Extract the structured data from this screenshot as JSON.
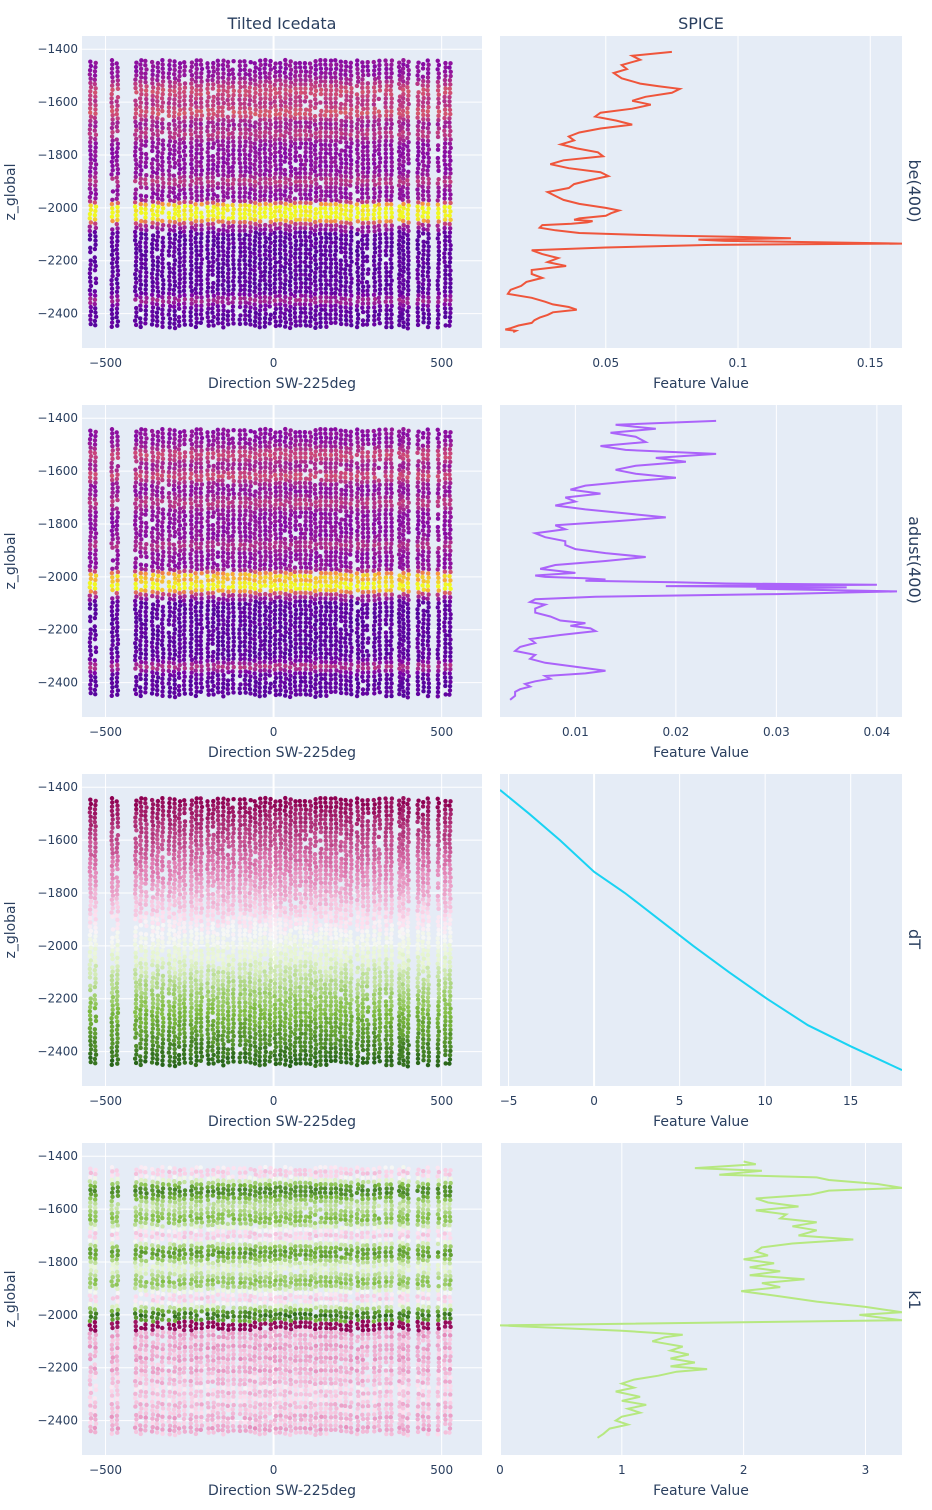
{
  "figure": {
    "column_titles": [
      "Tilted Icedata",
      "SPICE"
    ],
    "row_titles": [
      "be(400)",
      "adust(400)",
      "dT",
      "k1"
    ],
    "background": "#ffffff",
    "plot_background": "#e5ecf6"
  },
  "chart_data": [
    {
      "type": "scatter",
      "panel": "scatter-be400",
      "xlabel": "Direction SW-225deg",
      "ylabel": "z_global",
      "xlim": [
        -570,
        620
      ],
      "ylim": [
        -2530,
        -1350
      ],
      "xticks": [
        -500,
        0,
        500
      ],
      "xtick_labels": [
        "−500",
        "0",
        "500"
      ],
      "yticks": [
        -1400,
        -1600,
        -1800,
        -2000,
        -2200,
        -2400
      ],
      "ytick_labels": [
        "−1400",
        "−1600",
        "−1800",
        "−2000",
        "−2200",
        "−2400"
      ],
      "x_columns": [
        -545,
        -530,
        -480,
        -465,
        -410,
        -395,
        -380,
        -360,
        -345,
        -330,
        -310,
        -295,
        -280,
        -265,
        -245,
        -230,
        -215,
        -195,
        -180,
        -165,
        -150,
        -135,
        -120,
        -100,
        -85,
        -70,
        -55,
        -40,
        -25,
        -10,
        5,
        20,
        35,
        50,
        65,
        80,
        95,
        110,
        125,
        140,
        155,
        170,
        185,
        200,
        215,
        230,
        250,
        265,
        280,
        300,
        315,
        335,
        350,
        375,
        385,
        400,
        430,
        445,
        460,
        490,
        510,
        525
      ],
      "z_range": [
        -2460,
        -1440
      ],
      "colorscale": "plasma",
      "color_profile": "be400"
    },
    {
      "type": "line",
      "panel": "line-be400",
      "xlabel": "Feature Value",
      "ylabel": "",
      "color": "#ef553b",
      "xlim": [
        0.01,
        0.162
      ],
      "ylim": [
        -2530,
        -1350
      ],
      "xticks": [
        0.05,
        0.1,
        0.15
      ],
      "xtick_labels": [
        "0.05",
        "0.1",
        "0.15"
      ],
      "x": [
        0.075,
        0.06,
        0.063,
        0.056,
        0.058,
        0.053,
        0.056,
        0.063,
        0.07,
        0.078,
        0.075,
        0.065,
        0.06,
        0.067,
        0.06,
        0.048,
        0.046,
        0.054,
        0.06,
        0.048,
        0.04,
        0.036,
        0.038,
        0.033,
        0.039,
        0.047,
        0.049,
        0.034,
        0.029,
        0.036,
        0.048,
        0.051,
        0.044,
        0.038,
        0.036,
        0.028,
        0.031,
        0.034,
        0.04,
        0.05,
        0.055,
        0.052,
        0.05,
        0.04,
        0.038,
        0.045,
        0.043,
        0.037,
        0.026,
        0.025,
        0.031,
        0.04,
        0.055,
        0.074,
        0.1,
        0.12,
        0.085,
        0.095,
        0.13,
        0.162,
        0.09,
        0.05,
        0.022,
        0.026,
        0.032,
        0.028,
        0.035,
        0.022,
        0.022,
        0.026,
        0.02,
        0.018,
        0.014,
        0.013,
        0.022,
        0.027,
        0.03,
        0.036,
        0.039,
        0.03,
        0.028,
        0.025,
        0.023,
        0.022,
        0.017,
        0.014,
        0.012,
        0.016,
        0.015
      ],
      "y": [
        -1410,
        -1425,
        -1440,
        -1460,
        -1475,
        -1490,
        -1510,
        -1530,
        -1540,
        -1550,
        -1565,
        -1580,
        -1595,
        -1610,
        -1625,
        -1640,
        -1655,
        -1670,
        -1685,
        -1700,
        -1715,
        -1730,
        -1745,
        -1760,
        -1775,
        -1790,
        -1805,
        -1820,
        -1835,
        -1850,
        -1865,
        -1880,
        -1895,
        -1910,
        -1925,
        -1940,
        -1955,
        -1970,
        -1985,
        -2000,
        -2010,
        -2020,
        -2030,
        -2040,
        -2045,
        -2050,
        -2055,
        -2060,
        -2065,
        -2075,
        -2085,
        -2095,
        -2100,
        -2105,
        -2110,
        -2115,
        -2120,
        -2125,
        -2130,
        -2135,
        -2140,
        -2150,
        -2160,
        -2175,
        -2190,
        -2205,
        -2220,
        -2235,
        -2250,
        -2265,
        -2280,
        -2295,
        -2310,
        -2325,
        -2340,
        -2355,
        -2365,
        -2375,
        -2385,
        -2395,
        -2405,
        -2415,
        -2425,
        -2435,
        -2445,
        -2455,
        -2460,
        -2465,
        -2470
      ]
    },
    {
      "type": "scatter",
      "panel": "scatter-adust400",
      "xlabel": "Direction SW-225deg",
      "ylabel": "z_global",
      "xlim": [
        -570,
        620
      ],
      "ylim": [
        -2530,
        -1350
      ],
      "xticks": [
        -500,
        0,
        500
      ],
      "xtick_labels": [
        "−500",
        "0",
        "500"
      ],
      "yticks": [
        -1400,
        -1600,
        -1800,
        -2000,
        -2200,
        -2400
      ],
      "ytick_labels": [
        "−1400",
        "−1600",
        "−1800",
        "−2000",
        "−2200",
        "−2400"
      ],
      "x_columns": [
        -545,
        -530,
        -480,
        -465,
        -410,
        -395,
        -380,
        -360,
        -345,
        -330,
        -310,
        -295,
        -280,
        -265,
        -245,
        -230,
        -215,
        -195,
        -180,
        -165,
        -150,
        -135,
        -120,
        -100,
        -85,
        -70,
        -55,
        -40,
        -25,
        -10,
        5,
        20,
        35,
        50,
        65,
        80,
        95,
        110,
        125,
        140,
        155,
        170,
        185,
        200,
        215,
        230,
        250,
        265,
        280,
        300,
        315,
        335,
        350,
        375,
        385,
        400,
        430,
        445,
        460,
        490,
        510,
        525
      ],
      "z_range": [
        -2460,
        -1440
      ],
      "colorscale": "plasma",
      "color_profile": "adust400"
    },
    {
      "type": "line",
      "panel": "line-adust400",
      "xlabel": "Feature Value",
      "ylabel": "",
      "color": "#ab63fa",
      "xlim": [
        0.0025,
        0.0425
      ],
      "ylim": [
        -2530,
        -1350
      ],
      "xticks": [
        0.01,
        0.02,
        0.03,
        0.04
      ],
      "xtick_labels": [
        "0.01",
        "0.02",
        "0.03",
        "0.04"
      ],
      "x": [
        0.024,
        0.014,
        0.018,
        0.0135,
        0.016,
        0.017,
        0.0125,
        0.015,
        0.024,
        0.018,
        0.021,
        0.016,
        0.014,
        0.016,
        0.02,
        0.015,
        0.011,
        0.0095,
        0.0125,
        0.009,
        0.01,
        0.008,
        0.011,
        0.015,
        0.019,
        0.014,
        0.008,
        0.009,
        0.006,
        0.007,
        0.009,
        0.009,
        0.01,
        0.013,
        0.017,
        0.013,
        0.008,
        0.0065,
        0.01,
        0.006,
        0.007,
        0.011,
        0.013,
        0.011,
        0.02,
        0.025,
        0.04,
        0.019,
        0.037,
        0.028,
        0.042,
        0.03,
        0.012,
        0.006,
        0.0055,
        0.007,
        0.006,
        0.006,
        0.0075,
        0.0085,
        0.011,
        0.0095,
        0.0115,
        0.012,
        0.0085,
        0.0055,
        0.006,
        0.0045,
        0.004,
        0.006,
        0.0055,
        0.007,
        0.01,
        0.013,
        0.011,
        0.007,
        0.0075,
        0.006,
        0.005,
        0.0055,
        0.0045,
        0.004,
        0.004,
        0.0035
      ],
      "y": [
        -1410,
        -1425,
        -1440,
        -1455,
        -1470,
        -1490,
        -1505,
        -1520,
        -1535,
        -1550,
        -1565,
        -1580,
        -1595,
        -1610,
        -1625,
        -1640,
        -1655,
        -1670,
        -1685,
        -1700,
        -1715,
        -1730,
        -1745,
        -1760,
        -1775,
        -1790,
        -1805,
        -1820,
        -1835,
        -1850,
        -1865,
        -1880,
        -1895,
        -1910,
        -1925,
        -1940,
        -1955,
        -1970,
        -1985,
        -1995,
        -2000,
        -2005,
        -2010,
        -2015,
        -2020,
        -2025,
        -2030,
        -2035,
        -2040,
        -2045,
        -2055,
        -2065,
        -2075,
        -2085,
        -2095,
        -2105,
        -2120,
        -2135,
        -2150,
        -2165,
        -2175,
        -2185,
        -2195,
        -2205,
        -2220,
        -2235,
        -2250,
        -2265,
        -2280,
        -2295,
        -2310,
        -2325,
        -2340,
        -2355,
        -2365,
        -2375,
        -2385,
        -2395,
        -2405,
        -2415,
        -2425,
        -2435,
        -2450,
        -2465
      ]
    },
    {
      "type": "scatter",
      "panel": "scatter-dT",
      "xlabel": "Direction SW-225deg",
      "ylabel": "z_global",
      "xlim": [
        -570,
        620
      ],
      "ylim": [
        -2530,
        -1350
      ],
      "xticks": [
        -500,
        0,
        500
      ],
      "xtick_labels": [
        "−500",
        "0",
        "500"
      ],
      "yticks": [
        -1400,
        -1600,
        -1800,
        -2000,
        -2200,
        -2400
      ],
      "ytick_labels": [
        "−1400",
        "−1600",
        "−1800",
        "−2000",
        "−2200",
        "−2400"
      ],
      "x_columns": [
        -545,
        -530,
        -480,
        -465,
        -410,
        -395,
        -380,
        -360,
        -345,
        -330,
        -310,
        -295,
        -280,
        -265,
        -245,
        -230,
        -215,
        -195,
        -180,
        -165,
        -150,
        -135,
        -120,
        -100,
        -85,
        -70,
        -55,
        -40,
        -25,
        -10,
        5,
        20,
        35,
        50,
        65,
        80,
        95,
        110,
        125,
        140,
        155,
        170,
        185,
        200,
        215,
        230,
        250,
        265,
        280,
        300,
        315,
        335,
        350,
        375,
        385,
        400,
        430,
        445,
        460,
        490,
        510,
        525
      ],
      "z_range": [
        -2460,
        -1440
      ],
      "colorscale": "piyg",
      "color_profile": "dT"
    },
    {
      "type": "line",
      "panel": "line-dT",
      "xlabel": "Feature Value",
      "ylabel": "",
      "color": "#19d3f3",
      "xlim": [
        -5.5,
        18
      ],
      "ylim": [
        -2530,
        -1350
      ],
      "xticks": [
        -5,
        0,
        5,
        10,
        15
      ],
      "xtick_labels": [
        "−5",
        "0",
        "5",
        "10",
        "15"
      ],
      "x": [
        -5.5,
        -3.8,
        -2,
        0,
        1.8,
        3.8,
        5.8,
        7.9,
        10.1,
        12.5,
        15,
        18
      ],
      "y": [
        -1410,
        -1500,
        -1600,
        -1720,
        -1800,
        -1900,
        -2000,
        -2100,
        -2200,
        -2300,
        -2380,
        -2470
      ]
    },
    {
      "type": "scatter",
      "panel": "scatter-k1",
      "xlabel": "Direction SW-225deg",
      "ylabel": "z_global",
      "xlim": [
        -570,
        620
      ],
      "ylim": [
        -2530,
        -1350
      ],
      "xticks": [
        -500,
        0,
        500
      ],
      "xtick_labels": [
        "−500",
        "0",
        "500"
      ],
      "yticks": [
        -1400,
        -1600,
        -1800,
        -2000,
        -2200,
        -2400
      ],
      "ytick_labels": [
        "−1400",
        "−1600",
        "−1800",
        "−2000",
        "−2200",
        "−2400"
      ],
      "x_columns": [
        -545,
        -530,
        -480,
        -465,
        -410,
        -395,
        -380,
        -360,
        -345,
        -330,
        -310,
        -295,
        -280,
        -265,
        -245,
        -230,
        -215,
        -195,
        -180,
        -165,
        -150,
        -135,
        -120,
        -100,
        -85,
        -70,
        -55,
        -40,
        -25,
        -10,
        5,
        20,
        35,
        50,
        65,
        80,
        95,
        110,
        125,
        140,
        155,
        170,
        185,
        200,
        215,
        230,
        250,
        265,
        280,
        300,
        315,
        335,
        350,
        375,
        385,
        400,
        430,
        445,
        460,
        490,
        510,
        525
      ],
      "z_range": [
        -2460,
        -1440
      ],
      "colorscale": "piyg",
      "color_profile": "k1"
    },
    {
      "type": "line",
      "panel": "line-k1",
      "xlabel": "Feature Value",
      "ylabel": "",
      "color": "#b6e880",
      "xlim": [
        0,
        3.3
      ],
      "ylim": [
        -2530,
        -1350
      ],
      "xticks": [
        0,
        1,
        2,
        3
      ],
      "xtick_labels": [
        "0",
        "1",
        "2",
        "3"
      ],
      "x": [
        2,
        2.1,
        1.6,
        2.15,
        1.8,
        2.6,
        2.7,
        3.1,
        3.3,
        2.7,
        2.55,
        2.1,
        2.2,
        2.45,
        2.1,
        2.35,
        2.3,
        2.6,
        2.4,
        2.6,
        2.45,
        2.9,
        2.4,
        2.15,
        2.1,
        2.2,
        2.0,
        2.25,
        2.05,
        2.3,
        2.05,
        2.5,
        2.15,
        2.3,
        1.98,
        2.3,
        2.6,
        3.0,
        3.3,
        2.95,
        3.3,
        0,
        0.5,
        1.0,
        1.5,
        1.35,
        1.25,
        1.5,
        1.4,
        1.55,
        1.4,
        1.6,
        1.4,
        1.7,
        1.45,
        1.3,
        1.1,
        1.0,
        1.1,
        0.95,
        1.15,
        1.0,
        1.2,
        1.05,
        1.15,
        1.0,
        0.95,
        1.05,
        0.9,
        0.85,
        0.8
      ],
      "y": [
        -1420,
        -1430,
        -1445,
        -1455,
        -1470,
        -1480,
        -1490,
        -1505,
        -1520,
        -1530,
        -1545,
        -1560,
        -1575,
        -1590,
        -1605,
        -1620,
        -1635,
        -1650,
        -1665,
        -1680,
        -1700,
        -1715,
        -1730,
        -1745,
        -1760,
        -1775,
        -1790,
        -1805,
        -1820,
        -1835,
        -1850,
        -1865,
        -1880,
        -1895,
        -1910,
        -1930,
        -1950,
        -1970,
        -1990,
        -2000,
        -2020,
        -2040,
        -2050,
        -2060,
        -2075,
        -2085,
        -2100,
        -2120,
        -2135,
        -2150,
        -2165,
        -2180,
        -2195,
        -2205,
        -2215,
        -2230,
        -2245,
        -2260,
        -2275,
        -2290,
        -2310,
        -2325,
        -2340,
        -2355,
        -2370,
        -2385,
        -2400,
        -2415,
        -2430,
        -2450,
        -2465
      ]
    }
  ]
}
